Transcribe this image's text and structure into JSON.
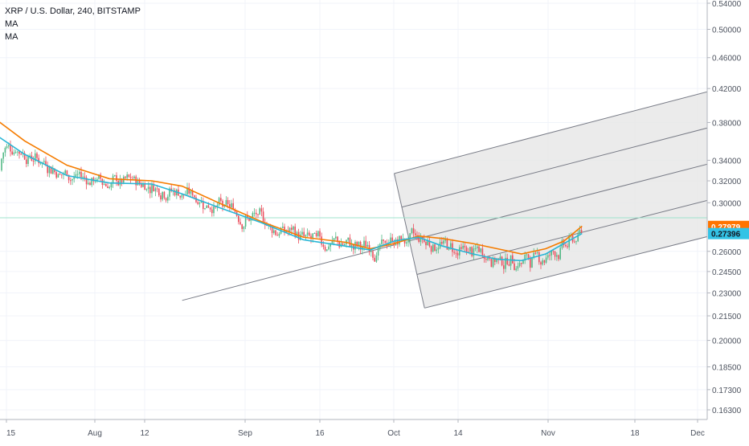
{
  "header": {
    "title": "XRP / U.S. Dollar, 240, BITSTAMP",
    "indicators": [
      "MA",
      "MA"
    ]
  },
  "colors": {
    "ma_orange": "#f57c00",
    "ma_blue": "#29b6d6",
    "candle_up": "#53b987",
    "candle_down": "#eb4d5c",
    "channel_fill": "#e6e6e6",
    "channel_line": "#787b86",
    "current_price_line": "#9fe3cd",
    "orange_tag": "#ff7400",
    "blue_tag": "#33c3e6"
  },
  "chart_data": {
    "type": "candlestick",
    "price_scale": "log",
    "ylim": [
      0.158,
      0.555
    ],
    "x_ticks": [
      "15",
      "Aug",
      "12",
      "Sep",
      "16",
      "Oct",
      "14",
      "Nov",
      "18",
      "Dec"
    ],
    "y_ticks": [
      "0.54000",
      "0.50000",
      "0.46000",
      "0.42000",
      "0.38000",
      "0.34000",
      "0.32000",
      "0.30000",
      "0.26000",
      "0.24500",
      "0.23000",
      "0.21500",
      "0.20000",
      "0.18500",
      "0.17300",
      "0.16300"
    ],
    "price_tags": [
      {
        "label": "0.27979",
        "value": 0.27979,
        "series": "MA"
      },
      {
        "label": "0.27396",
        "value": 0.27396,
        "series": "MA"
      }
    ],
    "series": [
      {
        "name": "MA",
        "color": "#f57c00",
        "points": [
          [
            "Jul 12",
            0.39
          ],
          [
            "Jul 18",
            0.36
          ],
          [
            "Jul 25",
            0.335
          ],
          [
            "Aug 1",
            0.322
          ],
          [
            "Aug 8",
            0.32
          ],
          [
            "Aug 13",
            0.315
          ],
          [
            "Aug 19",
            0.3
          ],
          [
            "Aug 26",
            0.284
          ],
          [
            "Sep 2",
            0.271
          ],
          [
            "Sep 9",
            0.267
          ],
          [
            "Sep 13",
            0.262
          ],
          [
            "Sep 17",
            0.266
          ],
          [
            "Sep 21",
            0.272
          ],
          [
            "Sep 25",
            0.27
          ],
          [
            "Sep 30",
            0.266
          ],
          [
            "Oct 4",
            0.262
          ],
          [
            "Oct 8",
            0.258
          ],
          [
            "Oct 12",
            0.262
          ],
          [
            "Oct 15",
            0.268
          ],
          [
            "Oct 18",
            0.28
          ]
        ]
      },
      {
        "name": "MA",
        "color": "#29b6d6",
        "points": [
          [
            "Jul 12",
            0.372
          ],
          [
            "Jul 18",
            0.346
          ],
          [
            "Jul 25",
            0.325
          ],
          [
            "Aug 1",
            0.318
          ],
          [
            "Aug 8",
            0.317
          ],
          [
            "Aug 13",
            0.308
          ],
          [
            "Aug 19",
            0.296
          ],
          [
            "Aug 26",
            0.283
          ],
          [
            "Sep 2",
            0.269
          ],
          [
            "Sep 9",
            0.264
          ],
          [
            "Sep 13",
            0.261
          ],
          [
            "Sep 17",
            0.268
          ],
          [
            "Sep 21",
            0.271
          ],
          [
            "Sep 25",
            0.264
          ],
          [
            "Sep 30",
            0.258
          ],
          [
            "Oct 4",
            0.254
          ],
          [
            "Oct 8",
            0.253
          ],
          [
            "Oct 12",
            0.258
          ],
          [
            "Oct 15",
            0.266
          ],
          [
            "Oct 18",
            0.274
          ]
        ]
      }
    ],
    "drawings": [
      {
        "type": "trend_line",
        "from": [
          "Aug 13",
          0.225
        ],
        "to": [
          "Sep 17",
          0.265
        ]
      },
      {
        "type": "pitchfork_channel",
        "upper_parallel_start": [
          "Sep 17",
          0.327
        ],
        "upper_parallel_end": [
          "Dec 2",
          0.466
        ],
        "lower_parallel_start": [
          "Sep 22",
          0.22
        ],
        "lower_parallel_end": [
          "Dec 2",
          0.303
        ],
        "median_lines": 3
      }
    ],
    "current_price": 0.287
  }
}
